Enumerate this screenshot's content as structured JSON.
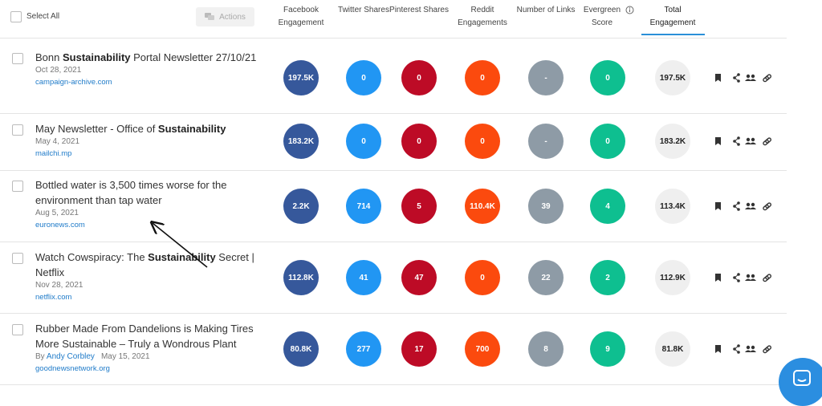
{
  "header": {
    "select_all": "Select All",
    "actions": "Actions",
    "columns": [
      {
        "label": "Facebook Engagement",
        "color": "#36589b",
        "text_color": "#ffffff"
      },
      {
        "label": "Twitter Shares",
        "color": "#2196f3",
        "text_color": "#ffffff"
      },
      {
        "label": "Pinterest Shares",
        "color": "#bd0b26",
        "text_color": "#ffffff"
      },
      {
        "label": "Reddit Engagements",
        "color": "#fb4a0e",
        "text_color": "#ffffff"
      },
      {
        "label": "Number of Links",
        "color": "#8e9ba6",
        "text_color": "#ffffff"
      },
      {
        "label": "Evergreen Score",
        "color": "#0ebf90",
        "text_color": "#ffffff"
      },
      {
        "label": "Total Engagement",
        "color": "#efefef",
        "text_color": "#222222"
      }
    ]
  },
  "rows": [
    {
      "title": [
        {
          "text": "Bonn ",
          "bold": false
        },
        {
          "text": "Sustainability",
          "bold": true
        },
        {
          "text": " Portal Newsletter 27/10/21",
          "bold": false
        }
      ],
      "date": "Oct 28, 2021",
      "domain": "campaign-archive.com",
      "metrics": [
        "197.5K",
        "0",
        "0",
        "0",
        "-",
        "0",
        "197.5K"
      ]
    },
    {
      "title": [
        {
          "text": "May Newsletter - Office of ",
          "bold": false
        },
        {
          "text": "Sustainability",
          "bold": true
        }
      ],
      "date": "May 4, 2021",
      "domain": "mailchi.mp",
      "metrics": [
        "183.2K",
        "0",
        "0",
        "0",
        "-",
        "0",
        "183.2K"
      ]
    },
    {
      "title": [
        {
          "text": "Bottled water is 3,500 times worse for the environment than tap water",
          "bold": false
        }
      ],
      "date": "Aug 5, 2021",
      "domain": "euronews.com",
      "metrics": [
        "2.2K",
        "714",
        "5",
        "110.4K",
        "39",
        "4",
        "113.4K"
      ]
    },
    {
      "title": [
        {
          "text": "Watch Cowspiracy: The ",
          "bold": false
        },
        {
          "text": "Sustainability",
          "bold": true
        },
        {
          "text": " Secret | Netflix",
          "bold": false
        }
      ],
      "date": "Nov 28, 2021",
      "domain": "netflix.com",
      "metrics": [
        "112.8K",
        "41",
        "47",
        "0",
        "22",
        "2",
        "112.9K"
      ]
    },
    {
      "title": [
        {
          "text": "Rubber Made From Dandelions is Making Tires More Sustainable – Truly a Wondrous Plant",
          "bold": false
        }
      ],
      "byline": "By",
      "author": "Andy Corbley",
      "date": "May 15, 2021",
      "domain": "goodnewsnetwork.org",
      "metrics": [
        "80.8K",
        "277",
        "17",
        "700",
        "8",
        "9",
        "81.8K"
      ]
    }
  ]
}
